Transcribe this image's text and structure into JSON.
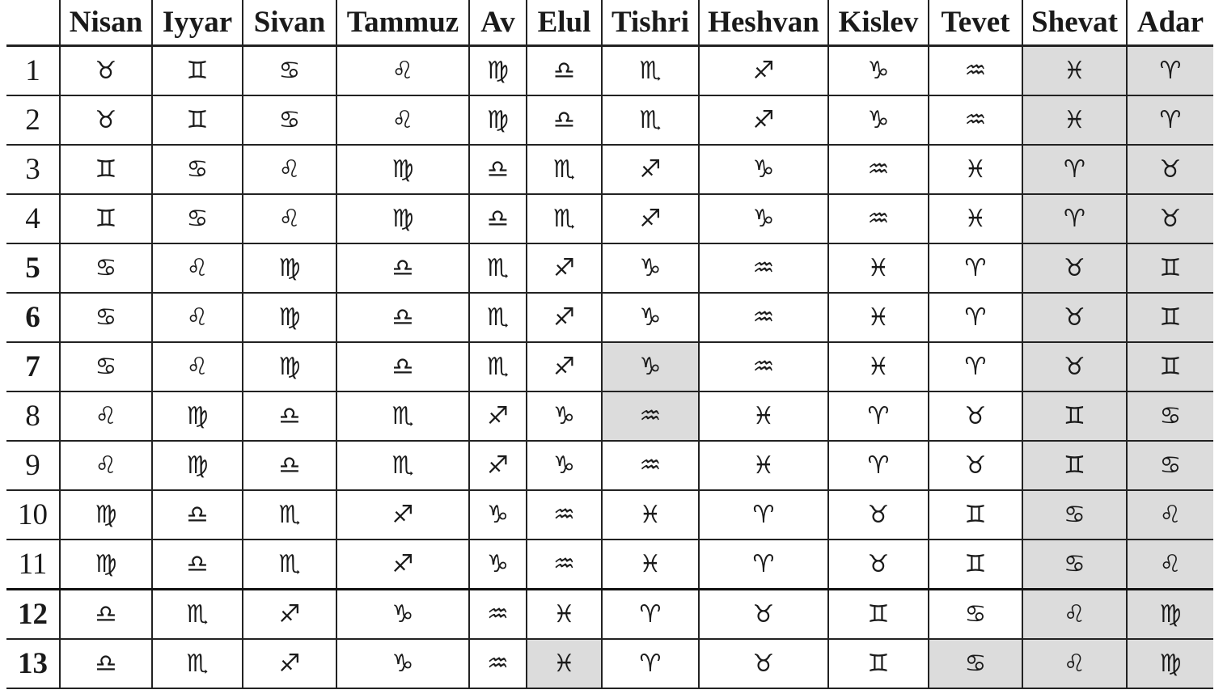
{
  "table": {
    "corner": "",
    "months": [
      "Nisan",
      "Iyyar",
      "Sivan",
      "Tammuz",
      "Av",
      "Elul",
      "Tishri",
      "Heshvan",
      "Kislev",
      "Tevet",
      "Shevat",
      "Adar"
    ],
    "shade_color": "#dcdcdc",
    "rows": [
      {
        "day": "1",
        "bold": false,
        "signs": [
          "♉",
          "♊",
          "♋",
          "♌",
          "♍",
          "♎",
          "♏",
          "♐",
          "♑",
          "♒",
          "♓",
          "♈"
        ],
        "shaded": [
          10,
          11
        ]
      },
      {
        "day": "2",
        "bold": false,
        "signs": [
          "♉",
          "♊",
          "♋",
          "♌",
          "♍",
          "♎",
          "♏",
          "♐",
          "♑",
          "♒",
          "♓",
          "♈"
        ],
        "shaded": [
          10,
          11
        ]
      },
      {
        "day": "3",
        "bold": false,
        "signs": [
          "♊",
          "♋",
          "♌",
          "♍",
          "♎",
          "♏",
          "♐",
          "♑",
          "♒",
          "♓",
          "♈",
          "♉"
        ],
        "shaded": [
          10,
          11
        ]
      },
      {
        "day": "4",
        "bold": false,
        "signs": [
          "♊",
          "♋",
          "♌",
          "♍",
          "♎",
          "♏",
          "♐",
          "♑",
          "♒",
          "♓",
          "♈",
          "♉"
        ],
        "shaded": [
          10,
          11
        ]
      },
      {
        "day": "5",
        "bold": true,
        "signs": [
          "♋",
          "♌",
          "♍",
          "♎",
          "♏",
          "♐",
          "♑",
          "♒",
          "♓",
          "♈",
          "♉",
          "♊"
        ],
        "shaded": [
          10,
          11
        ]
      },
      {
        "day": "6",
        "bold": true,
        "signs": [
          "♋",
          "♌",
          "♍",
          "♎",
          "♏",
          "♐",
          "♑",
          "♒",
          "♓",
          "♈",
          "♉",
          "♊"
        ],
        "shaded": [
          10,
          11
        ]
      },
      {
        "day": "7",
        "bold": true,
        "signs": [
          "♋",
          "♌",
          "♍",
          "♎",
          "♏",
          "♐",
          "♑",
          "♒",
          "♓",
          "♈",
          "♉",
          "♊"
        ],
        "shaded": [
          6,
          10,
          11
        ]
      },
      {
        "day": "8",
        "bold": false,
        "signs": [
          "♌",
          "♍",
          "♎",
          "♏",
          "♐",
          "♑",
          "♒",
          "♓",
          "♈",
          "♉",
          "♊",
          "♋"
        ],
        "shaded": [
          6,
          10,
          11
        ]
      },
      {
        "day": "9",
        "bold": false,
        "signs": [
          "♌",
          "♍",
          "♎",
          "♏",
          "♐",
          "♑",
          "♒",
          "♓",
          "♈",
          "♉",
          "♊",
          "♋"
        ],
        "shaded": [
          10,
          11
        ]
      },
      {
        "day": "10",
        "bold": false,
        "signs": [
          "♍",
          "♎",
          "♏",
          "♐",
          "♑",
          "♒",
          "♓",
          "♈",
          "♉",
          "♊",
          "♋",
          "♌"
        ],
        "shaded": [
          10,
          11
        ]
      },
      {
        "day": "11",
        "bold": false,
        "signs": [
          "♍",
          "♎",
          "♏",
          "♐",
          "♑",
          "♒",
          "♓",
          "♈",
          "♉",
          "♊",
          "♋",
          "♌"
        ],
        "shaded": [
          10,
          11
        ]
      },
      {
        "day": "12",
        "bold": true,
        "thick_top": true,
        "signs": [
          "♎",
          "♏",
          "♐",
          "♑",
          "♒",
          "♓",
          "♈",
          "♉",
          "♊",
          "♋",
          "♌",
          "♍"
        ],
        "shaded": [
          10,
          11
        ]
      },
      {
        "day": "13",
        "bold": true,
        "signs": [
          "♎",
          "♏",
          "♐",
          "♑",
          "♒",
          "♓",
          "♈",
          "♉",
          "♊",
          "♋",
          "♌",
          "♍"
        ],
        "shaded": [
          5,
          9,
          10,
          11
        ]
      }
    ]
  }
}
